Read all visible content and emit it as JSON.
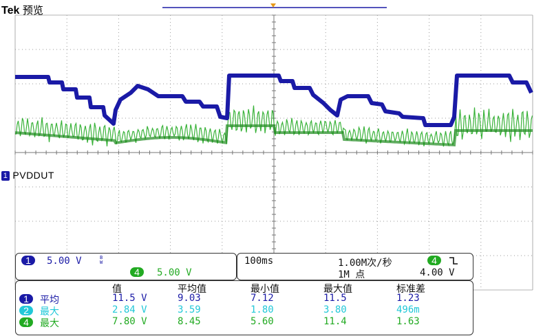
{
  "header": {
    "brand": "Tek",
    "mode": "预览"
  },
  "colors": {
    "ch1": "#1a1aa6",
    "ch2": "#22c8d8",
    "ch4": "#22aa22",
    "grid": "#9a9a9a",
    "trigger": "#e89a1a"
  },
  "channel_marker": {
    "channel": "1",
    "label": "PVDDUT"
  },
  "channels_box": {
    "ch1": {
      "num": "1",
      "scale": "5.00 V",
      "bw": "B\nW"
    },
    "ch4": {
      "num": "4",
      "scale": "5.00 V"
    }
  },
  "timebase_box": {
    "timebase": "100ms",
    "sample_rate": "1.00M次/秒",
    "record_length": "1M 点",
    "trigger_channel": "4",
    "trigger_slope_icon": "falling-edge-icon",
    "trigger_level": "4.00 V"
  },
  "measurements": {
    "headers": [
      "值",
      "平均值",
      "最小值",
      "最大值",
      "标准差"
    ],
    "rows": [
      {
        "ch": "1",
        "type": "平均",
        "values": [
          "11.5 V",
          "9.03",
          "7.12",
          "11.5",
          "1.23"
        ]
      },
      {
        "ch": "2",
        "type": "最大",
        "values": [
          "2.84 V",
          "3.59",
          "1.80",
          "3.80",
          "496m"
        ]
      },
      {
        "ch": "4",
        "type": "最大",
        "values": [
          "7.80 V",
          "8.45",
          "5.60",
          "11.4",
          "1.63"
        ]
      }
    ]
  }
}
